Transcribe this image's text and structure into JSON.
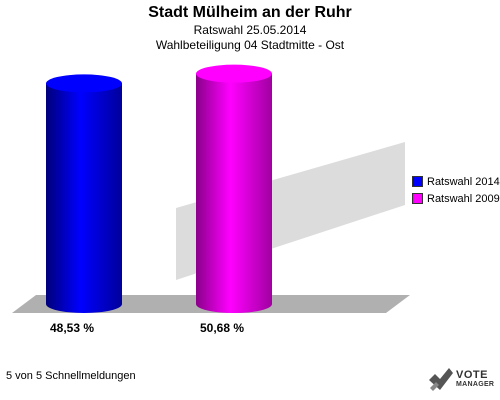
{
  "header": {
    "title": "Stadt Mülheim an der Ruhr",
    "subtitle": "Ratswahl 25.05.2014",
    "district": "Wahlbeteiligung 04 Stadtmitte - Ost"
  },
  "footer": {
    "status": "5 von 5 Schnellmeldungen"
  },
  "logo": {
    "line1": "VOTE",
    "line2": "MANAGER"
  },
  "colors": {
    "series1": "#0000ff",
    "series2": "#ff00ff",
    "shadow": "#b0b0b0"
  },
  "chart_data": {
    "type": "bar",
    "categories": [
      "Ratswahl 2014",
      "Ratswahl 2009"
    ],
    "values": [
      48.53,
      50.68
    ],
    "value_labels": [
      "48,53 %",
      "50,68 %"
    ],
    "ylim": [
      0,
      55
    ],
    "legend_position": "right",
    "grid": false
  }
}
